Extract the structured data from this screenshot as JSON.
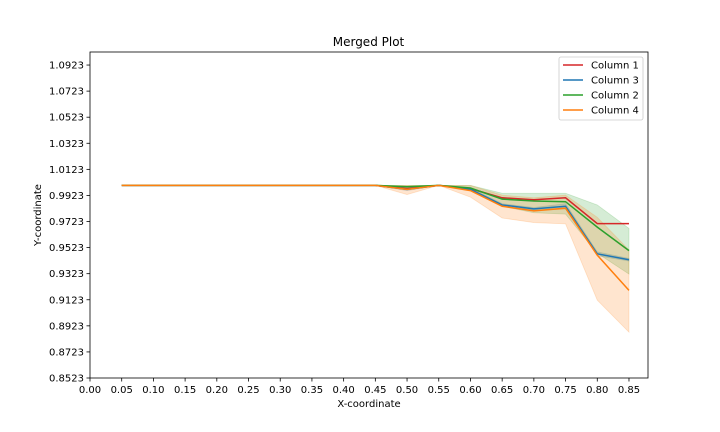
{
  "chart_data": {
    "type": "line",
    "title": "Merged Plot",
    "xlabel": "X-coordinate",
    "ylabel": "Y-coordinate",
    "xlim": [
      0.0,
      0.88
    ],
    "ylim": [
      0.8523,
      1.1023
    ],
    "xticks": [
      "0.00",
      "0.05",
      "0.10",
      "0.15",
      "0.20",
      "0.25",
      "0.30",
      "0.35",
      "0.40",
      "0.45",
      "0.50",
      "0.55",
      "0.60",
      "0.65",
      "0.70",
      "0.75",
      "0.80",
      "0.85"
    ],
    "yticks": [
      "0.8523",
      "0.8723",
      "0.8923",
      "0.9123",
      "0.9323",
      "0.9523",
      "0.9723",
      "0.9923",
      "1.0123",
      "1.0323",
      "1.0523",
      "1.0723",
      "1.0923"
    ],
    "grid": false,
    "legend_position": "top-right",
    "x": [
      0.05,
      0.1,
      0.15,
      0.2,
      0.25,
      0.3,
      0.35,
      0.4,
      0.45,
      0.5,
      0.55,
      0.6,
      0.65,
      0.7,
      0.75,
      0.8,
      0.85
    ],
    "series": [
      {
        "name": "Column 1",
        "color": "#d62728",
        "values": [
          1.0,
          1.0,
          1.0,
          1.0,
          1.0,
          1.0,
          1.0,
          1.0,
          1.0,
          0.9975,
          1.0,
          0.9975,
          0.9905,
          0.989,
          0.9905,
          0.9707,
          0.9707
        ],
        "band_low": [
          1.0,
          1.0,
          1.0,
          1.0,
          1.0,
          1.0,
          1.0,
          1.0,
          1.0,
          0.9975,
          1.0,
          0.9975,
          0.9905,
          0.989,
          0.9905,
          0.9707,
          0.9707
        ],
        "band_high": [
          1.0,
          1.0,
          1.0,
          1.0,
          1.0,
          1.0,
          1.0,
          1.0,
          1.0,
          0.9975,
          1.0,
          0.9975,
          0.9905,
          0.989,
          0.9905,
          0.9707,
          0.9707
        ]
      },
      {
        "name": "Column 3",
        "color": "#1f77b4",
        "values": [
          1.0,
          1.0,
          1.0,
          1.0,
          1.0,
          1.0,
          1.0,
          1.0,
          1.0,
          0.997,
          1.0,
          0.997,
          0.985,
          0.982,
          0.984,
          0.9475,
          0.943
        ],
        "band_low": [
          1.0,
          1.0,
          1.0,
          1.0,
          1.0,
          1.0,
          1.0,
          1.0,
          1.0,
          0.996,
          1.0,
          0.996,
          0.984,
          0.981,
          0.982,
          0.946,
          0.942
        ],
        "band_high": [
          1.0,
          1.0,
          1.0,
          1.0,
          1.0,
          1.0,
          1.0,
          1.0,
          1.0,
          0.998,
          1.0,
          0.998,
          0.986,
          0.983,
          0.986,
          0.949,
          0.944
        ]
      },
      {
        "name": "Column 2",
        "color": "#2ca02c",
        "values": [
          1.0,
          1.0,
          1.0,
          1.0,
          1.0,
          1.0,
          1.0,
          1.0,
          1.0,
          0.999,
          1.0,
          0.998,
          0.9895,
          0.988,
          0.9875,
          0.968,
          0.95
        ],
        "band_low": [
          1.0,
          1.0,
          1.0,
          1.0,
          1.0,
          1.0,
          1.0,
          1.0,
          1.0,
          0.998,
          1.0,
          0.996,
          0.984,
          0.979,
          0.978,
          0.948,
          0.932
        ],
        "band_high": [
          1.0,
          1.0,
          1.0,
          1.0,
          1.0,
          1.0,
          1.0,
          1.0,
          1.0,
          1.0,
          1.0,
          1.0,
          0.994,
          0.994,
          0.994,
          0.985,
          0.967
        ]
      },
      {
        "name": "Column 4",
        "color": "#ff7f0e",
        "values": [
          1.0,
          1.0,
          1.0,
          1.0,
          1.0,
          1.0,
          1.0,
          1.0,
          1.0,
          0.997,
          1.0,
          0.996,
          0.984,
          0.9805,
          0.9825,
          0.9465,
          0.9195
        ],
        "band_low": [
          1.0,
          1.0,
          1.0,
          1.0,
          1.0,
          1.0,
          1.0,
          1.0,
          1.0,
          0.993,
          1.0,
          0.991,
          0.975,
          0.9715,
          0.9705,
          0.912,
          0.8875
        ],
        "band_high": [
          1.0,
          1.0,
          1.0,
          1.0,
          1.0,
          1.0,
          1.0,
          1.0,
          1.0,
          1.0,
          1.0,
          1.0,
          0.9925,
          0.9905,
          0.9925,
          0.9755,
          0.9505
        ]
      }
    ]
  }
}
